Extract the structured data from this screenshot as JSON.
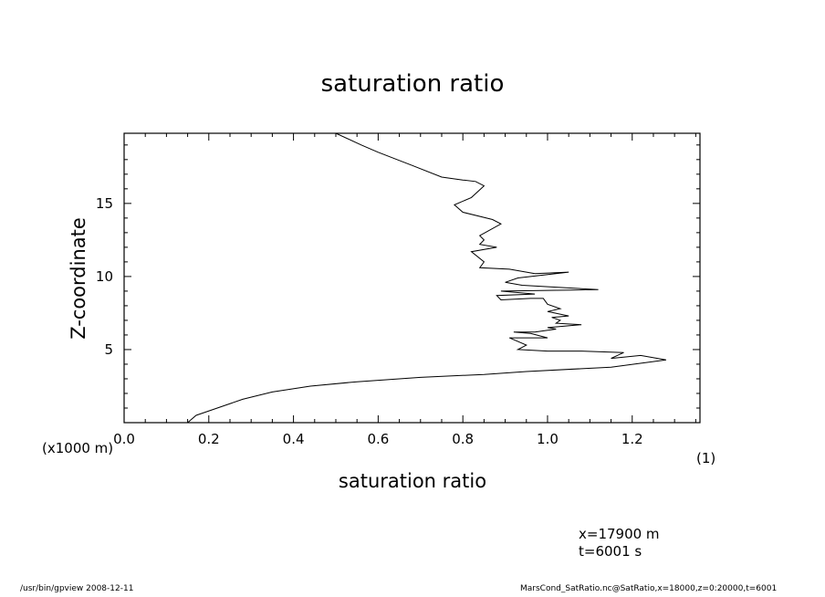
{
  "chart_data": {
    "type": "line",
    "title": "saturation ratio",
    "xlabel": "saturation ratio",
    "ylabel": "Z-coordinate",
    "x_unit": "(1)",
    "y_unit": "(x1000 m)",
    "xlim": [
      0.0,
      1.36
    ],
    "ylim": [
      0,
      19.8
    ],
    "xticks": [
      "0.0",
      "0.2",
      "0.4",
      "0.6",
      "0.8",
      "1.0",
      "1.2"
    ],
    "yticks": [
      "5",
      "10",
      "15"
    ],
    "grid": false,
    "series": [
      {
        "x": [
          0.15,
          0.17,
          0.22,
          0.28,
          0.35,
          0.44,
          0.55,
          0.7,
          0.85,
          0.95,
          1.15,
          1.28,
          1.22,
          1.15,
          1.18,
          1.08,
          1.0,
          0.93,
          0.95,
          0.91,
          1.0,
          0.96,
          0.92,
          0.97,
          1.02,
          1.0,
          1.08,
          1.02,
          1.03,
          1.01,
          1.05,
          1.0,
          1.03,
          1.0,
          0.99,
          0.96,
          0.89,
          0.88,
          0.97,
          0.89,
          1.12,
          0.94,
          0.9,
          0.93,
          1.05,
          0.97,
          0.93,
          0.91,
          0.84,
          0.85,
          0.82,
          0.88,
          0.84,
          0.85,
          0.84,
          0.89,
          0.87,
          0.8,
          0.78,
          0.82,
          0.85,
          0.83,
          0.8,
          0.75,
          0.68,
          0.6,
          0.56,
          0.5
        ],
        "y": [
          0.0,
          0.5,
          1.0,
          1.6,
          2.1,
          2.5,
          2.8,
          3.1,
          3.3,
          3.5,
          3.8,
          4.3,
          4.6,
          4.4,
          4.8,
          4.9,
          4.9,
          5.0,
          5.3,
          5.8,
          5.8,
          6.1,
          6.2,
          6.2,
          6.4,
          6.5,
          6.7,
          6.8,
          7.0,
          7.2,
          7.3,
          7.6,
          7.8,
          8.1,
          8.5,
          8.5,
          8.4,
          8.7,
          8.8,
          9.0,
          9.1,
          9.4,
          9.6,
          9.9,
          10.3,
          10.2,
          10.4,
          10.5,
          10.6,
          11.0,
          11.7,
          12.0,
          12.2,
          12.5,
          12.8,
          13.6,
          13.9,
          14.4,
          14.9,
          15.4,
          16.2,
          16.5,
          16.6,
          16.8,
          17.6,
          18.5,
          19.0,
          19.8
        ]
      }
    ]
  },
  "info": {
    "x_value": "x=17900  m",
    "t_value": "t=6001  s"
  },
  "footer": {
    "left": "/usr/bin/gpview   2008-12-11",
    "right": "MarsCond_SatRatio.nc@SatRatio,x=18000,z=0:20000,t=6001"
  }
}
